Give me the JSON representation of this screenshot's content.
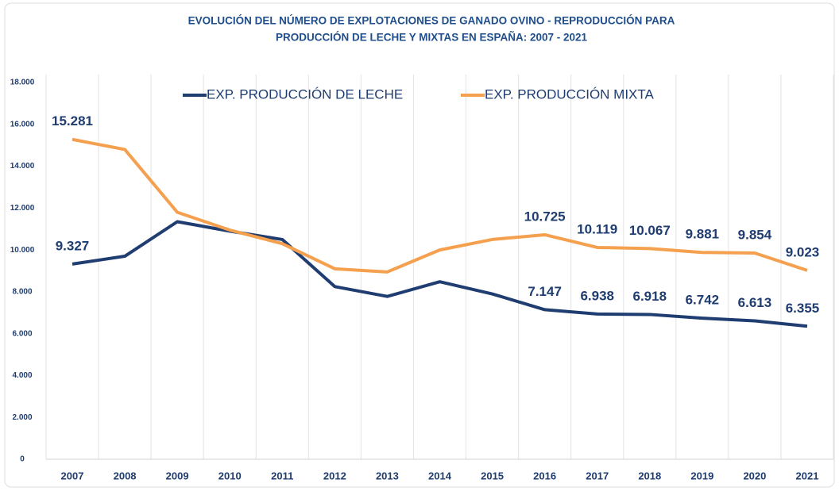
{
  "chart_data": {
    "type": "line",
    "title": [
      "EVOLUCIÓN  DEL NÚMERO DE EXPLOTACIONES DE GANADO OVINO - REPRODUCCIÓN PARA",
      "PRODUCCIÓN  DE LECHE Y MIXTAS EN ESPAÑA: 2007 - 2021"
    ],
    "categories": [
      "2007",
      "2008",
      "2009",
      "2010",
      "2011",
      "2012",
      "2013",
      "2014",
      "2015",
      "2016",
      "2017",
      "2018",
      "2019",
      "2020",
      "2021"
    ],
    "series": [
      {
        "name": "EXP. PRODUCCIÓN DE LECHE",
        "color": "#1f3d70",
        "values": [
          9327,
          9700,
          11350,
          10900,
          10500,
          8250,
          7780,
          8480,
          7900,
          7147,
          6938,
          6918,
          6742,
          6613,
          6355
        ],
        "value_labels": [
          "9.327",
          null,
          null,
          null,
          null,
          null,
          null,
          null,
          null,
          "7.147",
          "6.938",
          "6.918",
          "6.742",
          "6.613",
          "6.355"
        ]
      },
      {
        "name": "EXP. PRODUCCIÓN MIXTA",
        "color": "#f4a04e",
        "values": [
          15281,
          14800,
          11800,
          10950,
          10300,
          9100,
          8950,
          10000,
          10500,
          10725,
          10119,
          10067,
          9881,
          9854,
          9023
        ],
        "value_labels": [
          "15.281",
          null,
          null,
          null,
          null,
          null,
          null,
          null,
          null,
          "10.725",
          "10.119",
          "10.067",
          "9.881",
          "9.854",
          "9.023"
        ]
      }
    ],
    "ylim": [
      0,
      18000
    ],
    "yticks": [
      0,
      {
        "value": 2000,
        "label": "2.000"
      },
      {
        "value": 4000,
        "label": "4.000"
      },
      {
        "value": 6000,
        "label": "6.000"
      },
      {
        "value": 8000,
        "label": "8.000"
      },
      {
        "value": 10000,
        "label": "10.000"
      },
      {
        "value": 12000,
        "label": "12.000"
      },
      {
        "value": 14000,
        "label": "14.000"
      },
      {
        "value": 16000,
        "label": "16.000"
      },
      {
        "value": 18000,
        "label": "18.000"
      }
    ]
  }
}
